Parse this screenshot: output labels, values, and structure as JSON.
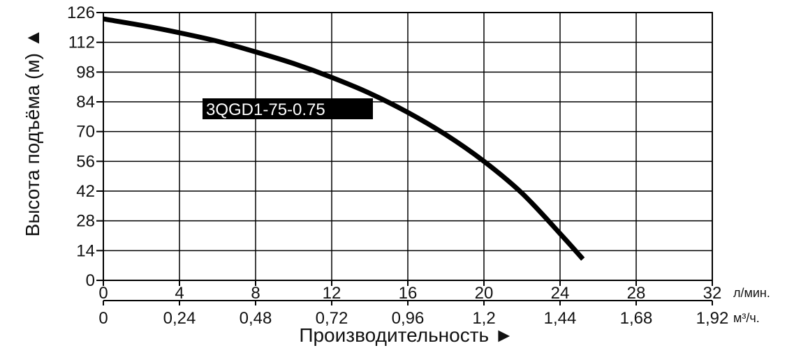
{
  "chart_data": {
    "type": "line",
    "ylabel": "Высота подъёма (м) ▲",
    "xlabel": "Производительность ►",
    "x_units_primary": "л/мин.",
    "x_units_secondary": "м³/ч.",
    "xlim": [
      0,
      32
    ],
    "ylim": [
      0,
      126
    ],
    "x_ticks_primary": [
      "0",
      "4",
      "8",
      "12",
      "16",
      "20",
      "24",
      "28",
      "32"
    ],
    "x_ticks_secondary": [
      "0",
      "0,24",
      "0,48",
      "0,72",
      "0,96",
      "1,2",
      "1,44",
      "1,68",
      "1,92"
    ],
    "y_ticks": [
      "0",
      "14",
      "28",
      "42",
      "56",
      "70",
      "84",
      "98",
      "112",
      "126"
    ],
    "grid": true,
    "series": [
      {
        "name": "3QGD1-75-0.75",
        "x": [
          0,
          2,
          4,
          6,
          8,
          10,
          12,
          14,
          16,
          18,
          20,
          22,
          24,
          25.2
        ],
        "y": [
          123,
          120,
          116.5,
          112.5,
          107.5,
          102,
          95.5,
          88,
          79,
          68.5,
          56,
          41,
          22,
          10
        ]
      }
    ]
  }
}
